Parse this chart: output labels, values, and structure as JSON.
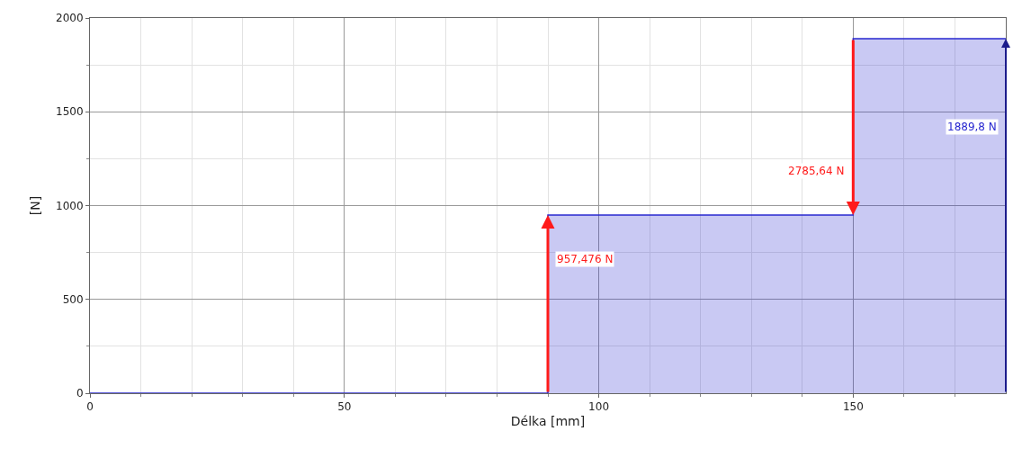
{
  "chart_data": {
    "type": "step",
    "xlabel": "Délka [mm]",
    "ylabel": "[N]",
    "x": [
      0,
      90,
      150,
      180
    ],
    "series": [
      {
        "color": "#2828d0",
        "values": [
          0,
          950,
          1890,
          1890
        ]
      }
    ],
    "xlim": [
      0,
      180
    ],
    "xticks": [
      0,
      {
        "value": 10,
        "label": null
      },
      {
        "value": 20,
        "label": null
      },
      {
        "value": 30,
        "label": null
      },
      {
        "value": 40,
        "label": null
      },
      50,
      {
        "value": 60,
        "label": null
      },
      {
        "value": 70,
        "label": null
      },
      {
        "value": 80,
        "label": null
      },
      {
        "value": 90,
        "label": null
      },
      100,
      {
        "value": 110,
        "label": null
      },
      {
        "value": 120,
        "label": null
      },
      {
        "value": 130,
        "label": null
      },
      {
        "value": 140,
        "label": null
      },
      150,
      {
        "value": 160,
        "label": null
      },
      {
        "value": 170,
        "label": null
      }
    ],
    "ylim": [
      0,
      2000
    ],
    "yticks": [
      0,
      {
        "value": 250,
        "label": null
      },
      500,
      {
        "value": 750,
        "label": null
      },
      1000,
      {
        "value": 1250,
        "label": null
      },
      1500,
      {
        "value": 1750,
        "label": null
      },
      2000
    ],
    "grid": true,
    "annotations": [
      "957,476 N",
      "2785,64 N",
      "1889,8 N"
    ]
  }
}
